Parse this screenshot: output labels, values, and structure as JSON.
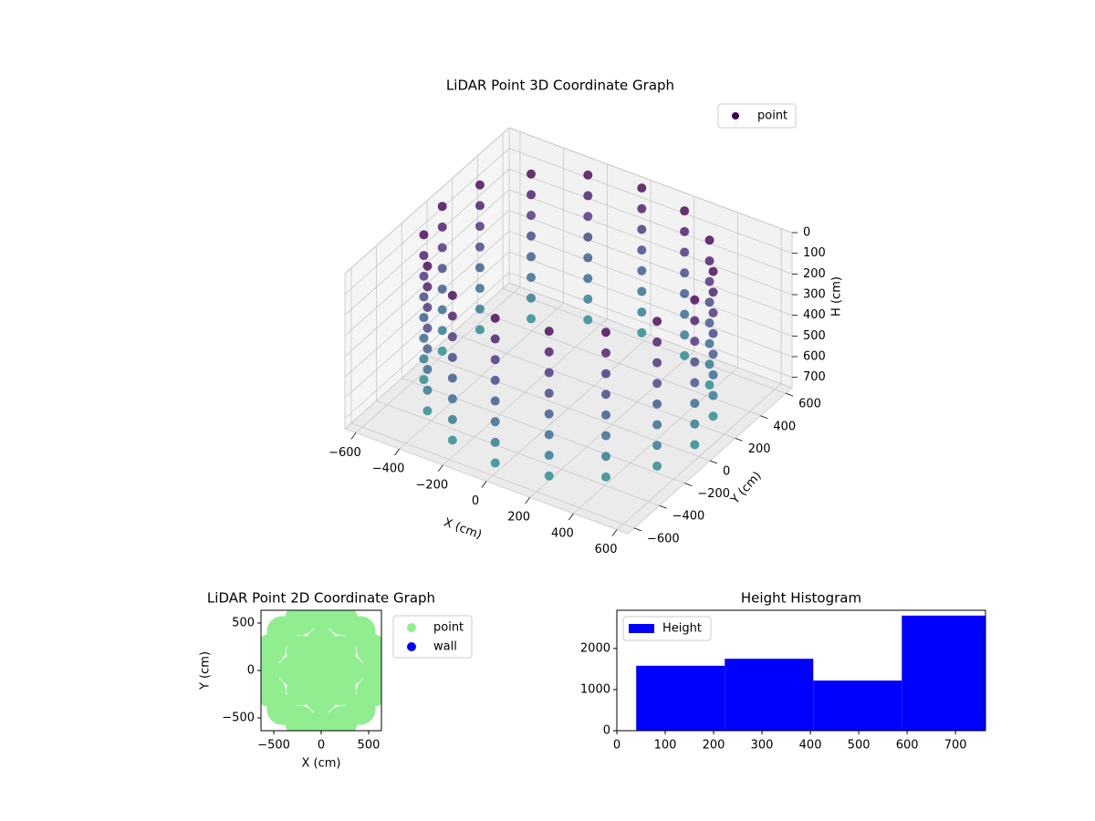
{
  "chart_data": [
    {
      "type": "scatter3d",
      "title": "LiDAR Point 3D Coordinate Graph",
      "xlabel": "X (cm)",
      "ylabel": "Y (cm)",
      "zlabel": "H (cm)",
      "legend": "upper right",
      "colormap": "viridis",
      "xlim": [
        -650,
        650
      ],
      "ylim": [
        -650,
        650
      ],
      "zlim": [
        0,
        750
      ],
      "zinverted": true,
      "xticks": [
        {
          "value": -600,
          "label": "−600"
        },
        {
          "value": -400,
          "label": "−400"
        },
        {
          "value": -200,
          "label": "−200"
        },
        0,
        200,
        400,
        600
      ],
      "yticks": [
        {
          "value": -600,
          "label": "−600"
        },
        {
          "value": -400,
          "label": "−400"
        },
        {
          "value": -200,
          "label": "−200"
        },
        0,
        200,
        400,
        600
      ],
      "zticks": [
        0,
        100,
        200,
        300,
        400,
        500,
        600,
        700
      ],
      "series": [
        {
          "name": "point",
          "color": "#440154",
          "x": [
            580,
            536,
            410,
            222,
            0,
            -222,
            -410,
            -536,
            -580,
            -536,
            -410,
            -222,
            0,
            222,
            410,
            536,
            580,
            536,
            410,
            222,
            0,
            -222,
            -410,
            -536,
            -580,
            -536,
            -410,
            -222,
            0,
            222,
            410,
            536,
            580,
            536,
            410,
            222,
            0,
            -222,
            -410,
            -536,
            -580,
            -536,
            -410,
            -222,
            0,
            222,
            410,
            536,
            580,
            536,
            410,
            222,
            0,
            -222,
            -410,
            -536,
            -580,
            -536,
            -410,
            -222,
            0,
            222,
            410,
            536,
            580,
            536,
            410,
            222,
            0,
            -222,
            -410,
            -536,
            -580,
            -536,
            -410,
            -222,
            0,
            222,
            410,
            536,
            580,
            536,
            410,
            222,
            0,
            -222,
            -410,
            -536,
            -580,
            -536,
            -410,
            -222,
            0,
            222,
            410,
            536,
            580,
            536,
            410,
            222,
            0,
            -222,
            -410,
            -536,
            -580,
            -536,
            -410,
            -222,
            0,
            222,
            410,
            536,
            580,
            536,
            410,
            222,
            0,
            -222,
            -410,
            -536,
            -580,
            -536,
            -410,
            -222,
            0,
            222,
            410,
            536
          ],
          "y": [
            0,
            222,
            410,
            536,
            580,
            536,
            410,
            222,
            0,
            -222,
            -410,
            -536,
            -580,
            -536,
            -410,
            -222,
            0,
            222,
            410,
            536,
            580,
            536,
            410,
            222,
            0,
            -222,
            -410,
            -536,
            -580,
            -536,
            -410,
            -222,
            0,
            222,
            410,
            536,
            580,
            536,
            410,
            222,
            0,
            -222,
            -410,
            -536,
            -580,
            -536,
            -410,
            -222,
            0,
            222,
            410,
            536,
            580,
            536,
            410,
            222,
            0,
            -222,
            -410,
            -536,
            -580,
            -536,
            -410,
            -222,
            0,
            222,
            410,
            536,
            580,
            536,
            410,
            222,
            0,
            -222,
            -410,
            -536,
            -580,
            -536,
            -410,
            -222,
            0,
            222,
            410,
            536,
            580,
            536,
            410,
            222,
            0,
            -222,
            -410,
            -536,
            -580,
            -536,
            -410,
            -222,
            0,
            222,
            410,
            536,
            580,
            536,
            410,
            222,
            0,
            -222,
            -410,
            -536,
            -580,
            -536,
            -410,
            -222,
            0,
            222,
            410,
            536,
            580,
            536,
            410,
            222,
            0,
            -222,
            -410,
            -536,
            -580,
            -536,
            -410,
            -222
          ],
          "h": [
            0,
            0,
            0,
            0,
            0,
            0,
            0,
            0,
            0,
            0,
            0,
            0,
            0,
            0,
            0,
            0,
            100,
            100,
            100,
            100,
            100,
            100,
            100,
            100,
            100,
            100,
            100,
            100,
            100,
            100,
            100,
            100,
            200,
            200,
            200,
            200,
            200,
            200,
            200,
            200,
            200,
            200,
            200,
            200,
            200,
            200,
            200,
            200,
            300,
            300,
            300,
            300,
            300,
            300,
            300,
            300,
            300,
            300,
            300,
            300,
            300,
            300,
            300,
            300,
            400,
            400,
            400,
            400,
            400,
            400,
            400,
            400,
            400,
            400,
            400,
            400,
            400,
            400,
            400,
            400,
            500,
            500,
            500,
            500,
            500,
            500,
            500,
            500,
            500,
            500,
            500,
            500,
            500,
            500,
            500,
            500,
            600,
            600,
            600,
            600,
            600,
            600,
            600,
            600,
            600,
            600,
            600,
            600,
            600,
            600,
            600,
            600,
            700,
            700,
            700,
            700,
            700,
            700,
            700,
            700,
            700,
            700,
            700,
            700,
            700,
            700,
            700,
            700
          ]
        }
      ]
    },
    {
      "type": "scatter",
      "title": "LiDAR Point 2D Coordinate Graph",
      "xlabel": "X (cm)",
      "ylabel": "Y (cm)",
      "legend": "outside right",
      "xlim": [
        -635,
        635
      ],
      "ylim": [
        -635,
        635
      ],
      "xticks": [
        {
          "value": -500,
          "label": "−500"
        },
        0,
        500
      ],
      "yticks": [
        {
          "value": -500,
          "label": "−500"
        },
        0,
        500
      ],
      "series": [
        {
          "name": "point",
          "color": "#90ee90",
          "x": [
            580,
            536,
            410,
            222,
            0,
            -222,
            -410,
            -536,
            -580,
            -536,
            -410,
            -222,
            0,
            222,
            410,
            536,
            290,
            205,
            0,
            -205,
            -290,
            -205,
            0,
            205,
            0
          ],
          "y": [
            0,
            222,
            410,
            536,
            580,
            536,
            410,
            222,
            0,
            -222,
            -410,
            -536,
            -580,
            -536,
            -410,
            -222,
            0,
            205,
            290,
            205,
            0,
            -205,
            -290,
            -205,
            0
          ]
        },
        {
          "name": "wall",
          "color": "#0000ff",
          "x": [],
          "y": []
        }
      ]
    },
    {
      "type": "histogram",
      "title": "Height Histogram",
      "legend": "upper left",
      "series_name": "Height",
      "color": "#0000ff",
      "bins": [
        40,
        223,
        406,
        589,
        762
      ],
      "counts": [
        1580,
        1750,
        1220,
        2800
      ],
      "xlim": [
        0,
        762
      ],
      "ylim": [
        0,
        2930
      ],
      "xticks": [
        0,
        100,
        200,
        300,
        400,
        500,
        600,
        700
      ],
      "yticks": [
        0,
        1000,
        2000
      ]
    }
  ]
}
